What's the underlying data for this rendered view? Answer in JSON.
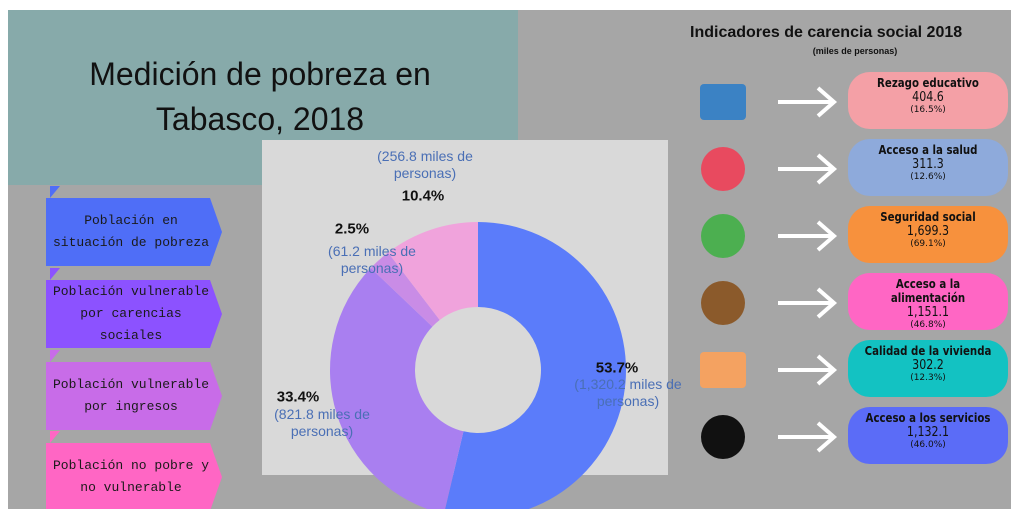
{
  "title": "Medición de pobreza en Tabasco, 2018",
  "chart_data": {
    "type": "pie",
    "categories": [
      "Población en situación de pobreza",
      "Población vulnerable por carencias sociales",
      "Población vulnerable por ingresos",
      "Población no pobre y no vulnerable"
    ],
    "values": [
      53.7,
      33.4,
      2.5,
      10.4
    ],
    "value_labels": [
      "53.7%",
      "33.4%",
      "2.5%",
      "10.4%"
    ],
    "annotations": [
      "(1,320.2 miles de personas)",
      "(821.8 miles de personas)",
      "(61.2 miles de personas)",
      "(256.8 miles de personas)"
    ],
    "colors": [
      "#5b7cfa",
      "#a97ff0",
      "#c98ce6",
      "#f0a3dc"
    ],
    "legend_colors": [
      "#4f6ef7",
      "#8c52ff",
      "#c86ce8",
      "#ff66c4"
    ]
  },
  "indicators": {
    "title": "Indicadores de carencia social 2018",
    "subtitle": "(miles de personas)",
    "items": [
      {
        "name": "Rezago educativo",
        "value": "404.6",
        "share": "(16.5%)",
        "color": "#f4a0a6"
      },
      {
        "name": "Acceso a la salud",
        "value": "311.3",
        "share": "(12.6%)",
        "color": "#8eaadb"
      },
      {
        "name": "Seguridad social",
        "value": "1,699.3",
        "share": "(69.1%)",
        "color": "#f7913d"
      },
      {
        "name": "Acceso a la alimentación",
        "value": "1,151.1",
        "share": "(46.8%)",
        "color": "#ff66c4"
      },
      {
        "name": "Calidad de la vivienda",
        "value": "302.2",
        "share": "(12.3%)",
        "color": "#13c2c2"
      },
      {
        "name": "Acceso a los servicios",
        "value": "1,132.1",
        "share": "(46.0%)",
        "color": "#5b6cf7"
      }
    ]
  }
}
